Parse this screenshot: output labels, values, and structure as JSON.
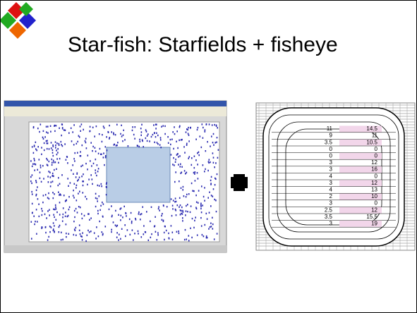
{
  "header": {
    "title": "Star-fish: Starfields + fisheye"
  },
  "fisheye": {
    "rows": [
      [
        "11",
        "14.5"
      ],
      [
        "9",
        "11"
      ],
      [
        "3.5",
        "10.5"
      ],
      [
        "0",
        "0"
      ],
      [
        "0",
        "0"
      ],
      [
        "3",
        "12"
      ],
      [
        "3",
        "16"
      ],
      [
        "4",
        "0"
      ],
      [
        "3",
        "12"
      ],
      [
        "4",
        "13"
      ],
      [
        "2",
        "10"
      ],
      [
        "3",
        "0"
      ],
      [
        "2.5",
        "12"
      ],
      [
        "3.5",
        "15.5"
      ],
      [
        "3",
        "19"
      ]
    ]
  }
}
